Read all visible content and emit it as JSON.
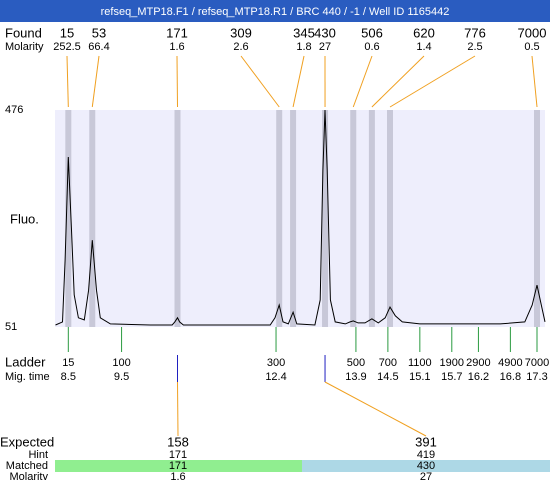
{
  "title": "refseq_MTP18.F1 / refseq_MTP18.R1 / BRC 440 / -1 / Well ID 1165442",
  "chart_data": {
    "type": "electropherogram",
    "y_label": "Fluo.",
    "ylim": [
      51,
      476
    ],
    "yticks": [
      51,
      476
    ],
    "xlim": [
      8.25,
      17.45
    ],
    "found": {
      "label": "Found",
      "molarity_label": "Molarity",
      "sizes": [
        15,
        53,
        171,
        309,
        345,
        430,
        506,
        620,
        776,
        7000
      ],
      "molarity": [
        252.5,
        66.4,
        1.6,
        2.6,
        1.8,
        27,
        0.6,
        1.4,
        2.5,
        0.5
      ],
      "x": [
        8.5,
        8.95,
        10.55,
        12.46,
        12.72,
        13.32,
        13.85,
        14.2,
        14.54,
        17.3
      ]
    },
    "ladder": {
      "label": "Ladder",
      "time_label": "Mig. time",
      "sizes": [
        15,
        100,
        300,
        500,
        700,
        1100,
        1900,
        2900,
        4900,
        7000
      ],
      "times": [
        8.5,
        9.5,
        12.4,
        13.9,
        14.5,
        15.1,
        15.7,
        16.2,
        16.8,
        17.3
      ]
    },
    "expected": {
      "label": "Expected",
      "hint_label": "Hint",
      "matched_label": "Matched",
      "molarity_label": "Molarity",
      "sizes": [
        158,
        391
      ],
      "hint": [
        171,
        419
      ],
      "matched": [
        171,
        430
      ],
      "molarity": [
        1.6,
        27
      ]
    },
    "trace": {
      "color": "#000000",
      "x": [
        8.26,
        8.39,
        8.44,
        8.5,
        8.56,
        8.61,
        8.69,
        8.8,
        8.88,
        8.95,
        9.03,
        9.1,
        9.29,
        10.04,
        10.45,
        10.5,
        10.55,
        10.59,
        10.66,
        12.29,
        12.38,
        12.46,
        12.53,
        12.63,
        12.72,
        12.79,
        13.13,
        13.23,
        13.28,
        13.32,
        13.36,
        13.42,
        13.51,
        13.7,
        13.79,
        13.85,
        13.94,
        14.07,
        14.2,
        14.32,
        14.45,
        14.54,
        14.64,
        14.77,
        15.1,
        16.61,
        17.07,
        17.21,
        17.3,
        17.38,
        17.45
      ],
      "values": [
        55,
        61,
        182,
        384,
        241,
        114,
        69,
        65,
        123,
        221,
        123,
        69,
        57,
        55,
        55,
        61,
        69,
        61,
        55,
        55,
        69,
        94,
        61,
        57,
        80,
        57,
        55,
        104,
        358,
        476,
        358,
        104,
        61,
        57,
        61,
        63,
        59,
        59,
        67,
        59,
        69,
        90,
        73,
        61,
        57,
        57,
        61,
        94,
        133,
        94,
        61
      ]
    }
  }
}
